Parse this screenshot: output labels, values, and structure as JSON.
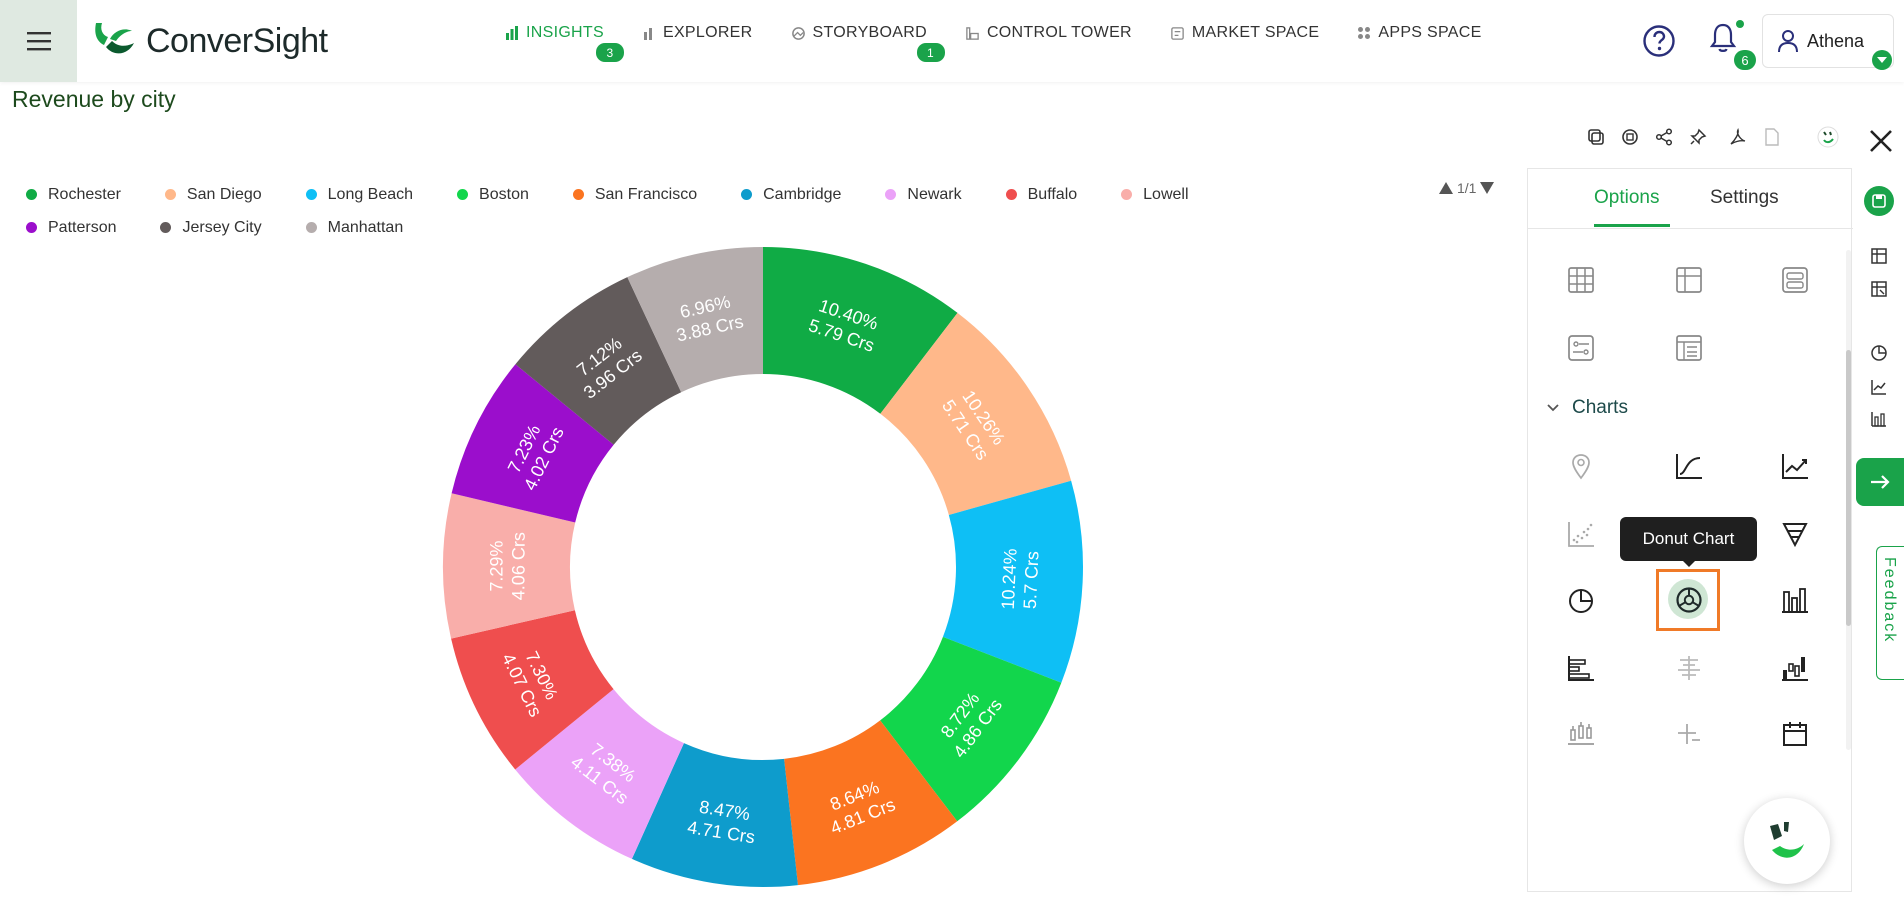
{
  "app": {
    "brand": "ConverSight",
    "colors": {
      "accent": "#1aa34a",
      "selection": "#f07a28"
    }
  },
  "nav": {
    "items": [
      {
        "label": "INSIGHTS",
        "icon": "bar-chart-icon",
        "badge": "3",
        "active": true
      },
      {
        "label": "EXPLORER",
        "icon": "explorer-icon"
      },
      {
        "label": "STORYBOARD",
        "icon": "storyboard-icon",
        "badge": "1"
      },
      {
        "label": "CONTROL TOWER",
        "icon": "control-tower-icon"
      },
      {
        "label": "MARKET SPACE",
        "icon": "market-space-icon"
      },
      {
        "label": "APPS SPACE",
        "icon": "apps-grid-icon"
      }
    ],
    "notifications_count": "6",
    "user_name": "Athena"
  },
  "page": {
    "title": "Revenue by city"
  },
  "legend": {
    "pager": "1/1"
  },
  "panel": {
    "tabs": [
      "Options",
      "Settings"
    ],
    "section_label": "Charts",
    "tooltip": "Donut Chart"
  },
  "feedback_label": "Feedback",
  "chart_data": {
    "type": "donut",
    "title": "Revenue by city",
    "unit": "Crs",
    "legend_position": "top",
    "slices": [
      {
        "name": "Rochester",
        "value": 5.79,
        "percent": "10.40%",
        "value_label": "5.79 Crs",
        "color": "#10ab45"
      },
      {
        "name": "San Diego",
        "value": 5.71,
        "percent": "10.26%",
        "value_label": "5.71 Crs",
        "color": "#ffb88a"
      },
      {
        "name": "Long Beach",
        "value": 5.7,
        "percent": "10.24%",
        "value_label": "5.7 Crs",
        "color": "#0ebff5"
      },
      {
        "name": "Boston",
        "value": 4.86,
        "percent": "8.72%",
        "value_label": "4.86 Crs",
        "color": "#12d64c"
      },
      {
        "name": "San Francisco",
        "value": 4.81,
        "percent": "8.64%",
        "value_label": "4.81 Crs",
        "color": "#fb7420"
      },
      {
        "name": "Cambridge",
        "value": 4.71,
        "percent": "8.47%",
        "value_label": "4.71 Crs",
        "color": "#0e9ccc"
      },
      {
        "name": "Newark",
        "value": 4.11,
        "percent": "7.38%",
        "value_label": "4.11 Crs",
        "color": "#eba2f8"
      },
      {
        "name": "Buffalo",
        "value": 4.07,
        "percent": "7.30%",
        "value_label": "4.07 Crs",
        "color": "#ef4e4e"
      },
      {
        "name": "Lowell",
        "value": 4.06,
        "percent": "7.29%",
        "value_label": "4.06 Crs",
        "color": "#f9aeaa"
      },
      {
        "name": "Patterson",
        "value": 4.02,
        "percent": "7.23%",
        "value_label": "4.02 Crs",
        "color": "#9b0ecc"
      },
      {
        "name": "Jersey City",
        "value": 3.96,
        "percent": "7.12%",
        "value_label": "3.96 Crs",
        "color": "#625b5b"
      },
      {
        "name": "Manhattan",
        "value": 3.88,
        "percent": "6.96%",
        "value_label": "3.88 Crs",
        "color": "#b5adad"
      }
    ]
  }
}
